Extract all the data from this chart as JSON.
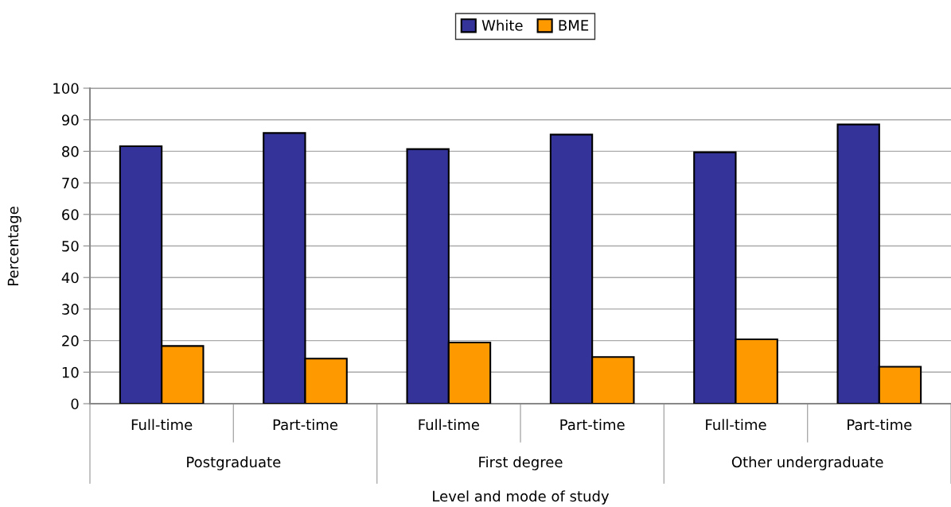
{
  "chart_data": {
    "type": "bar",
    "xlabel": "Level and mode of study",
    "ylabel": "Percentage",
    "categories": [
      "Full-time",
      "Part-time",
      "Full-time",
      "Part-time",
      "Full-time",
      "Part-time"
    ],
    "series": [
      {
        "name": "White",
        "color": "#333399",
        "values": [
          81.6,
          85.8,
          80.7,
          85.3,
          79.7,
          88.5
        ]
      },
      {
        "name": "BME",
        "color": "#ff9900",
        "values": [
          18.3,
          14.3,
          19.4,
          14.8,
          20.4,
          11.7
        ]
      }
    ],
    "annotations": [
      "Postgraduate",
      "First degree",
      "Other undergraduate"
    ],
    "ylim": [
      0,
      100
    ],
    "yticks": [
      0,
      10,
      20,
      30,
      40,
      50,
      60,
      70,
      80,
      90,
      100
    ],
    "grid": "y",
    "legend": "top"
  }
}
